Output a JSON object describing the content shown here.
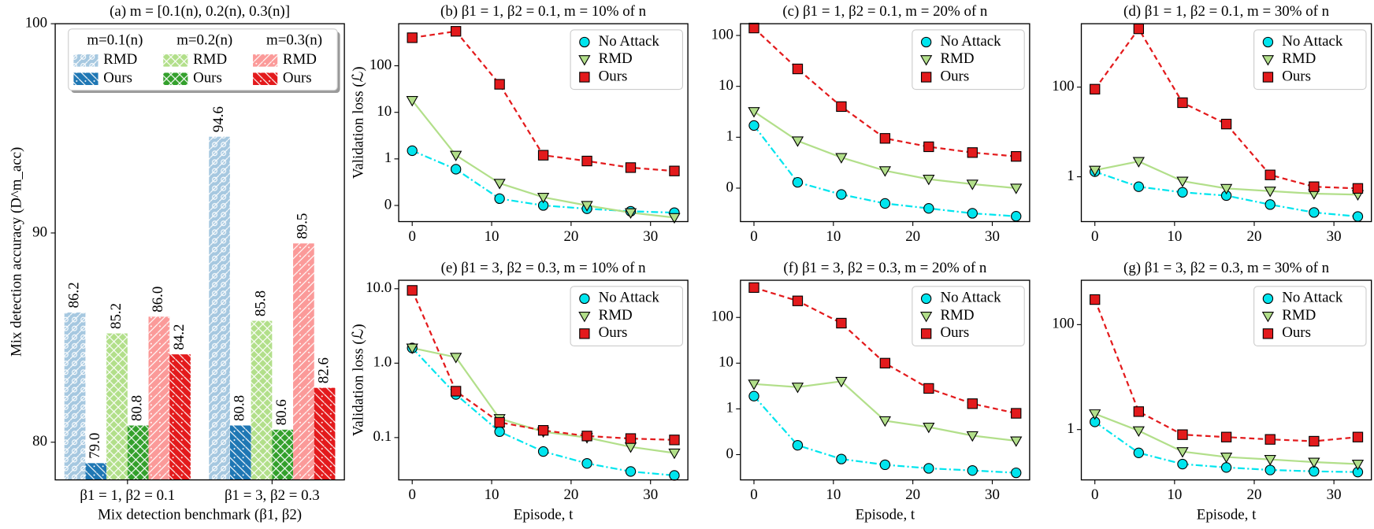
{
  "chart_data": [
    {
      "type": "bar",
      "title": "(a) m = [0.1(n), 0.2(n), 0.3(n)]",
      "ylabel": "Mix detection accuracy (D^m_acc)",
      "xlabel": "Mix detection benchmark (β1, β2)",
      "categories": [
        "β1 = 1, β2 = 0.1",
        "β1 = 3, β2 = 0.3"
      ],
      "ylim": [
        78.2,
        100
      ],
      "yticks": [
        80,
        90,
        100
      ],
      "legend": "upper center",
      "series": [
        {
          "name": "RMD",
          "group": "m=0.1(n)",
          "color": "#a6c8e0",
          "hatch": "o",
          "values": [
            86.2,
            94.6
          ],
          "value_labels": [
            "86.2",
            "94.6"
          ]
        },
        {
          "name": "Ours",
          "group": "m=0.1(n)",
          "color": "#1f77b4",
          "hatch": "\\",
          "values": [
            79,
            80.8
          ],
          "value_labels": [
            "79.0",
            "80.8"
          ]
        },
        {
          "name": "RMD",
          "group": "m=0.2(n)",
          "color": "#b2df8a",
          "hatch": "x",
          "values": [
            85.2,
            85.8
          ],
          "value_labels": [
            "85.2",
            "85.8"
          ]
        },
        {
          "name": "Ours",
          "group": "m=0.2(n)",
          "color": "#33a02c",
          "hatch": "x",
          "values": [
            80.8,
            80.6
          ],
          "value_labels": [
            "80.8",
            "80.6"
          ]
        },
        {
          "name": "RMD",
          "group": "m=0.3(n)",
          "color": "#fb9a99",
          "hatch": "/",
          "values": [
            86,
            89.5
          ],
          "value_labels": [
            "86.0",
            "89.5"
          ]
        },
        {
          "name": "Ours",
          "group": "m=0.3(n)",
          "color": "#e31a1c",
          "hatch": "\\",
          "values": [
            84.2,
            82.6
          ],
          "value_labels": [
            "84.2",
            "82.6"
          ]
        }
      ]
    },
    {
      "type": "line",
      "title": "(b) β1 = 1, β2 = 0.1, m = 10% of n",
      "ylabel": "Validation loss (ℒ)",
      "yscale": "log",
      "legend": "upper right",
      "x": [
        0,
        5.5,
        11,
        16.5,
        22,
        27.5,
        33
      ],
      "xlim": [
        -1.7,
        34.7
      ],
      "xticks": [
        0,
        10,
        20,
        30
      ],
      "ylim": [
        0.045,
        800
      ],
      "yticks": [
        {
          "value": 0.1,
          "label": "0"
        },
        1,
        10,
        100
      ],
      "series": [
        {
          "name": "No Attack",
          "color": "#00e5ee",
          "marker": "circle",
          "linestyle": "dashdot",
          "values": [
            1.5,
            0.6,
            0.14,
            0.1,
            0.085,
            0.075,
            0.07
          ]
        },
        {
          "name": "RMD",
          "color": "#b2df8a",
          "marker": "triangle-down",
          "linestyle": "solid",
          "values": [
            18,
            1.2,
            0.3,
            0.15,
            0.1,
            0.07,
            0.055
          ]
        },
        {
          "name": "Ours",
          "color": "#e31a1c",
          "marker": "square",
          "linestyle": "dashed",
          "values": [
            400,
            550,
            40,
            1.2,
            0.9,
            0.65,
            0.55
          ]
        }
      ]
    },
    {
      "type": "line",
      "title": "(c) β1 = 1, β2 = 0.1, m = 20% of n",
      "yscale": "log",
      "legend": "upper right",
      "x": [
        0,
        5.5,
        11,
        16.5,
        22,
        27.5,
        33
      ],
      "xlim": [
        -1.7,
        34.7
      ],
      "xticks": [
        0,
        10,
        20,
        30
      ],
      "ylim": [
        0.022,
        170
      ],
      "yticks": [
        {
          "value": 0.1,
          "label": "0"
        },
        1,
        10,
        100
      ],
      "series": [
        {
          "name": "No Attack",
          "color": "#00e5ee",
          "marker": "circle",
          "linestyle": "dashdot",
          "values": [
            1.7,
            0.13,
            0.075,
            0.05,
            0.04,
            0.032,
            0.028
          ]
        },
        {
          "name": "RMD",
          "color": "#b2df8a",
          "marker": "triangle-down",
          "linestyle": "solid",
          "values": [
            3.2,
            0.85,
            0.4,
            0.22,
            0.15,
            0.12,
            0.1
          ]
        },
        {
          "name": "Ours",
          "color": "#e31a1c",
          "marker": "square",
          "linestyle": "dashed",
          "values": [
            140,
            22,
            4,
            0.95,
            0.65,
            0.5,
            0.42
          ]
        }
      ]
    },
    {
      "type": "line",
      "title": "(d) β1 = 1, β2 = 0.1, m = 30% of n",
      "yscale": "log",
      "legend": "upper right",
      "x": [
        0,
        5.5,
        11,
        16.5,
        22,
        27.5,
        33
      ],
      "xlim": [
        -1.7,
        34.7
      ],
      "xticks": [
        0,
        10,
        20,
        30
      ],
      "ylim": [
        0.1,
        2600
      ],
      "yticks": [
        1,
        100
      ],
      "series": [
        {
          "name": "No Attack",
          "color": "#00e5ee",
          "marker": "circle",
          "linestyle": "dashdot",
          "values": [
            1.3,
            0.6,
            0.45,
            0.38,
            0.24,
            0.16,
            0.13
          ]
        },
        {
          "name": "RMD",
          "color": "#b2df8a",
          "marker": "triangle-down",
          "linestyle": "solid",
          "values": [
            1.4,
            2.2,
            0.8,
            0.55,
            0.48,
            0.42,
            0.4
          ]
        },
        {
          "name": "Ours",
          "color": "#e31a1c",
          "marker": "square",
          "linestyle": "dashed",
          "values": [
            90,
            2000,
            45,
            15,
            1.1,
            0.6,
            0.55
          ]
        }
      ]
    },
    {
      "type": "line",
      "title": "(e) β1 = 3, β2 = 0.3, m = 10% of n",
      "ylabel": "Validation loss (ℒ)",
      "xlabel": "Episode, t",
      "yscale": "log",
      "legend": "upper right",
      "x": [
        0,
        5.5,
        11,
        16.5,
        22,
        27.5,
        33
      ],
      "xlim": [
        -1.7,
        34.7
      ],
      "xticks": [
        0,
        10,
        20,
        30
      ],
      "ylim": [
        0.027,
        13
      ],
      "yticks": [
        0.1,
        {
          "value": 1,
          "label": "1.0"
        },
        {
          "value": 10,
          "label": "10.0"
        }
      ],
      "series": [
        {
          "name": "No Attack",
          "color": "#00e5ee",
          "marker": "circle",
          "linestyle": "dashdot",
          "values": [
            1.6,
            0.38,
            0.12,
            0.065,
            0.045,
            0.035,
            0.031
          ]
        },
        {
          "name": "RMD",
          "color": "#b2df8a",
          "marker": "triangle-down",
          "linestyle": "solid",
          "values": [
            1.6,
            1.2,
            0.18,
            0.12,
            0.1,
            0.075,
            0.062
          ]
        },
        {
          "name": "Ours",
          "color": "#e31a1c",
          "marker": "square",
          "linestyle": "dashed",
          "values": [
            9.5,
            0.42,
            0.16,
            0.125,
            0.105,
            0.097,
            0.093
          ]
        }
      ]
    },
    {
      "type": "line",
      "title": "(f) β1 = 3, β2 = 0.3, m = 20% of n",
      "xlabel": "Episode, t",
      "yscale": "log",
      "legend": "upper right",
      "x": [
        0,
        5.5,
        11,
        16.5,
        22,
        27.5,
        33
      ],
      "xlim": [
        -1.7,
        34.7
      ],
      "xticks": [
        0,
        10,
        20,
        30
      ],
      "ylim": [
        0.028,
        650
      ],
      "yticks": [
        {
          "value": 0.1,
          "label": "0"
        },
        1,
        10,
        100
      ],
      "series": [
        {
          "name": "No Attack",
          "color": "#00e5ee",
          "marker": "circle",
          "linestyle": "dashdot",
          "values": [
            1.9,
            0.16,
            0.08,
            0.06,
            0.05,
            0.045,
            0.04
          ]
        },
        {
          "name": "RMD",
          "color": "#b2df8a",
          "marker": "triangle-down",
          "linestyle": "solid",
          "values": [
            3.5,
            3,
            4,
            0.55,
            0.4,
            0.26,
            0.2
          ]
        },
        {
          "name": "Ours",
          "color": "#e31a1c",
          "marker": "square",
          "linestyle": "dashed",
          "values": [
            450,
            230,
            75,
            10,
            2.8,
            1.3,
            0.8
          ]
        }
      ]
    },
    {
      "type": "line",
      "title": "(g) β1 = 3, β2 = 0.3, m = 30% of n",
      "xlabel": "Episode, t",
      "yscale": "log",
      "legend": "upper right",
      "x": [
        0,
        5.5,
        11,
        16.5,
        22,
        27.5,
        33
      ],
      "xlim": [
        -1.7,
        34.7
      ],
      "xticks": [
        0,
        10,
        20,
        30
      ],
      "ylim": [
        0.11,
        700
      ],
      "yticks": [
        1,
        100
      ],
      "series": [
        {
          "name": "No Attack",
          "color": "#00e5ee",
          "marker": "circle",
          "linestyle": "dashdot",
          "values": [
            1.4,
            0.36,
            0.22,
            0.19,
            0.17,
            0.16,
            0.155
          ]
        },
        {
          "name": "RMD",
          "color": "#b2df8a",
          "marker": "triangle-down",
          "linestyle": "solid",
          "values": [
            2,
            0.95,
            0.38,
            0.3,
            0.27,
            0.24,
            0.22
          ]
        },
        {
          "name": "Ours",
          "color": "#e31a1c",
          "marker": "square",
          "linestyle": "dashed",
          "values": [
            300,
            2.2,
            0.8,
            0.72,
            0.65,
            0.6,
            0.72
          ]
        }
      ]
    }
  ]
}
